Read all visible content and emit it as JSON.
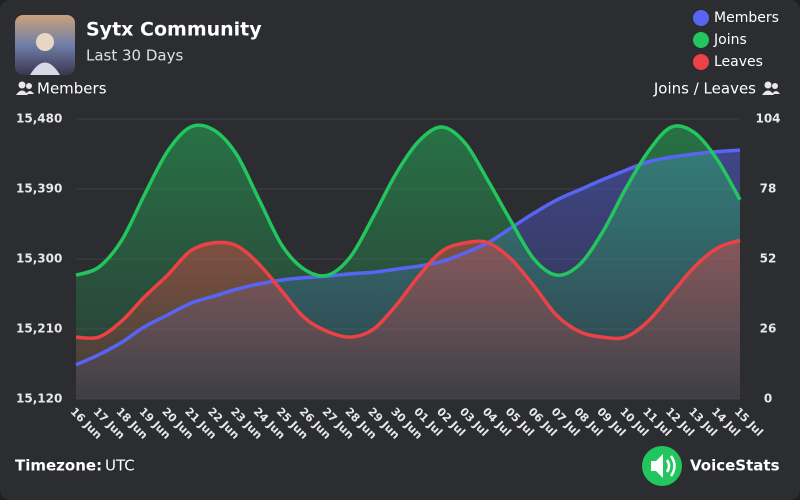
{
  "chart_data": {
    "type": "area",
    "title": "Sytx Community",
    "subtitle": "Last 30 Days",
    "y_label": "Members",
    "y2_label": "Joins / Leaves",
    "footer_label": "Timezone:",
    "footer_value": "UTC",
    "brand": "VoiceStats",
    "categories": [
      "16 Jun",
      "17 Jun",
      "18 Jun",
      "19 Jun",
      "20 Jun",
      "21 Jun",
      "22 Jun",
      "23 Jun",
      "24 Jun",
      "25 Jun",
      "26 Jun",
      "27 Jun",
      "28 Jun",
      "29 Jun",
      "30 Jun",
      "01 Jul",
      "02 Jul",
      "03 Jul",
      "04 Jul",
      "05 Jul",
      "06 Jul",
      "07 Jul",
      "08 Jul",
      "09 Jul",
      "10 Jul",
      "11 Jul",
      "12 Jul",
      "13 Jul",
      "14 Jul",
      "15 Jul"
    ],
    "ylim": [
      15120,
      15480
    ],
    "yticks": [
      {
        "value": 15120,
        "label": "15,120"
      },
      {
        "value": 15210,
        "label": "15,210"
      },
      {
        "value": 15300,
        "label": "15,300"
      },
      {
        "value": 15390,
        "label": "15,390"
      },
      {
        "value": 15480,
        "label": "15,480"
      }
    ],
    "y2lim": [
      0,
      104
    ],
    "y2ticks": [
      0,
      26,
      52,
      78,
      104
    ],
    "grid": true,
    "series": [
      {
        "name": "Members",
        "color": "#5865f2",
        "values": [
          15164,
          15177,
          15193,
          15213,
          15228,
          15243,
          15252,
          15261,
          15268,
          15273,
          15276,
          15278,
          15281,
          15283,
          15287,
          15291,
          15297,
          15308,
          15321,
          15340,
          15359,
          15376,
          15389,
          15402,
          15414,
          15425,
          15431,
          15435,
          15438,
          15440
        ]
      },
      {
        "name": "Joins",
        "color": "#23c55e",
        "axis": "y2",
        "values": [
          46,
          49,
          59,
          76,
          92,
          101,
          100,
          91,
          74,
          57,
          48,
          46,
          53,
          68,
          84,
          96,
          101,
          95,
          81,
          66,
          52,
          46,
          50,
          62,
          78,
          92,
          101,
          99,
          89,
          74
        ]
      },
      {
        "name": "Leaves",
        "color": "#ed4245",
        "axis": "y2",
        "values": [
          23,
          23,
          29,
          38,
          46,
          55,
          58,
          57,
          50,
          40,
          30,
          25,
          23,
          26,
          35,
          46,
          55,
          58,
          58,
          52,
          42,
          31,
          25,
          23,
          23,
          29,
          39,
          49,
          56,
          59
        ]
      }
    ]
  }
}
